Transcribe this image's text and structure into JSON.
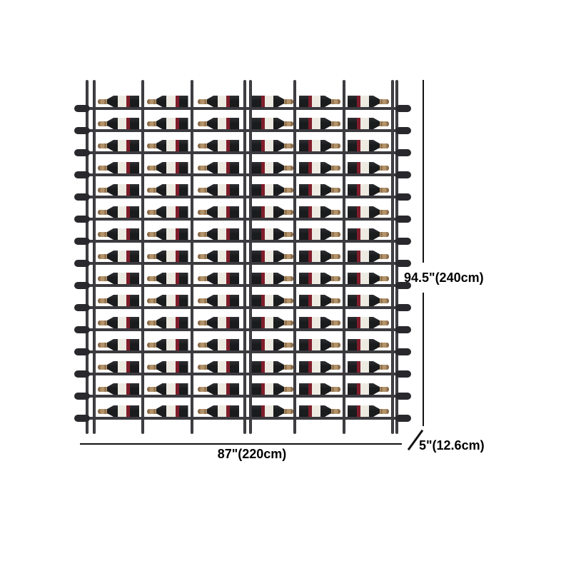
{
  "dimensions": {
    "height_label": "94.5\"(240cm)",
    "width_label": "87\"(220cm)",
    "depth_label": "5\"(12.6cm)"
  },
  "rack": {
    "rows": 15,
    "columns": 6,
    "bottles_total": 90,
    "columns_neck_direction": [
      "left",
      "left",
      "left",
      "right",
      "right",
      "right"
    ],
    "colors": {
      "post": "#2b2a2e",
      "rail": "#3b3a3f",
      "loop": "#29282c",
      "bottle_body": "#1a1b1d",
      "bottle_body_hi": "#2e2f33",
      "bottle_label": "#edeae2",
      "bottle_red": "#7f1d2a",
      "bottle_neck": "#b3936a",
      "bottle_neck_dark": "#8a6b4a",
      "dimension_text": "#000000",
      "dimension_line": "#121212",
      "background": "#ffffff"
    }
  }
}
